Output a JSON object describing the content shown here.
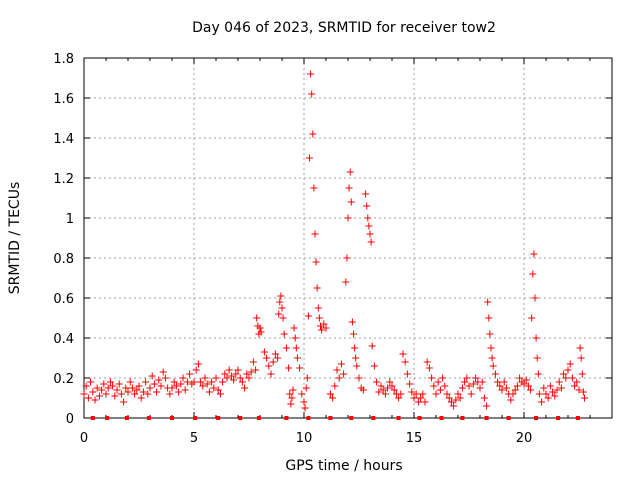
{
  "chart_data": {
    "type": "scatter",
    "title": "Day 046 of 2023, SRMTID for receiver tow2",
    "xlabel": "GPS time / hours",
    "ylabel": "SRMTID / TECUs",
    "xlim": [
      0,
      24
    ],
    "ylim": [
      0,
      1.8
    ],
    "xticks": [
      0,
      5,
      10,
      15,
      20
    ],
    "yticks": [
      0,
      0.2,
      0.4,
      0.6,
      0.8,
      1,
      1.2,
      1.4,
      1.6,
      1.8
    ],
    "xtick_labels": [
      "0",
      "5",
      "10",
      "15",
      "20"
    ],
    "ytick_labels": [
      "0",
      "0.2",
      "0.4",
      "0.6",
      "0.8",
      "1",
      "1.2",
      "1.4",
      "1.6",
      "1.8"
    ],
    "grid": true,
    "marker": "+",
    "color": "#ff0000",
    "series": [
      {
        "name": "SRMTID",
        "points": [
          [
            0.0,
            0.12
          ],
          [
            0.1,
            0.16
          ],
          [
            0.2,
            0.1
          ],
          [
            0.3,
            0.18
          ],
          [
            0.4,
            0.13
          ],
          [
            0.5,
            0.09
          ],
          [
            0.6,
            0.15
          ],
          [
            0.7,
            0.11
          ],
          [
            0.8,
            0.14
          ],
          [
            0.9,
            0.17
          ],
          [
            1.0,
            0.12
          ],
          [
            1.1,
            0.15
          ],
          [
            1.2,
            0.18
          ],
          [
            1.3,
            0.16
          ],
          [
            1.4,
            0.11
          ],
          [
            1.5,
            0.14
          ],
          [
            1.6,
            0.17
          ],
          [
            1.7,
            0.12
          ],
          [
            1.8,
            0.08
          ],
          [
            1.9,
            0.15
          ],
          [
            2.0,
            0.13
          ],
          [
            2.1,
            0.18
          ],
          [
            2.2,
            0.15
          ],
          [
            2.3,
            0.12
          ],
          [
            2.4,
            0.14
          ],
          [
            2.5,
            0.16
          ],
          [
            2.6,
            0.1
          ],
          [
            2.7,
            0.13
          ],
          [
            2.8,
            0.18
          ],
          [
            2.9,
            0.12
          ],
          [
            3.0,
            0.15
          ],
          [
            3.1,
            0.21
          ],
          [
            3.2,
            0.17
          ],
          [
            3.3,
            0.13
          ],
          [
            3.4,
            0.19
          ],
          [
            3.5,
            0.16
          ],
          [
            3.6,
            0.23
          ],
          [
            3.7,
            0.2
          ],
          [
            3.8,
            0.15
          ],
          [
            3.9,
            0.12
          ],
          [
            4.0,
            0.15
          ],
          [
            4.1,
            0.18
          ],
          [
            4.2,
            0.16
          ],
          [
            4.3,
            0.13
          ],
          [
            4.4,
            0.17
          ],
          [
            4.5,
            0.2
          ],
          [
            4.6,
            0.14
          ],
          [
            4.7,
            0.18
          ],
          [
            4.8,
            0.22
          ],
          [
            4.9,
            0.17
          ],
          [
            5.0,
            0.18
          ],
          [
            5.1,
            0.24
          ],
          [
            5.2,
            0.27
          ],
          [
            5.3,
            0.18
          ],
          [
            5.4,
            0.16
          ],
          [
            5.5,
            0.2
          ],
          [
            5.6,
            0.17
          ],
          [
            5.7,
            0.13
          ],
          [
            5.8,
            0.18
          ],
          [
            5.9,
            0.15
          ],
          [
            6.0,
            0.2
          ],
          [
            6.1,
            0.14
          ],
          [
            6.2,
            0.12
          ],
          [
            6.3,
            0.18
          ],
          [
            6.4,
            0.22
          ],
          [
            6.5,
            0.2
          ],
          [
            6.6,
            0.24
          ],
          [
            6.7,
            0.21
          ],
          [
            6.8,
            0.19
          ],
          [
            6.9,
            0.22
          ],
          [
            7.0,
            0.24
          ],
          [
            7.1,
            0.2
          ],
          [
            7.2,
            0.18
          ],
          [
            7.3,
            0.15
          ],
          [
            7.4,
            0.22
          ],
          [
            7.5,
            0.2
          ],
          [
            7.6,
            0.23
          ],
          [
            7.7,
            0.28
          ],
          [
            7.8,
            0.24
          ],
          [
            7.85,
            0.5
          ],
          [
            7.9,
            0.46
          ],
          [
            7.95,
            0.42
          ],
          [
            8.0,
            0.45
          ],
          [
            8.05,
            0.43
          ],
          [
            8.2,
            0.33
          ],
          [
            8.3,
            0.3
          ],
          [
            8.4,
            0.26
          ],
          [
            8.5,
            0.22
          ],
          [
            8.6,
            0.28
          ],
          [
            8.7,
            0.32
          ],
          [
            8.8,
            0.3
          ],
          [
            8.85,
            0.52
          ],
          [
            8.9,
            0.58
          ],
          [
            8.95,
            0.61
          ],
          [
            9.0,
            0.55
          ],
          [
            9.05,
            0.5
          ],
          [
            9.1,
            0.42
          ],
          [
            9.2,
            0.35
          ],
          [
            9.3,
            0.25
          ],
          [
            9.35,
            0.12
          ],
          [
            9.4,
            0.07
          ],
          [
            9.45,
            0.1
          ],
          [
            9.5,
            0.14
          ],
          [
            9.55,
            0.45
          ],
          [
            9.6,
            0.4
          ],
          [
            9.65,
            0.35
          ],
          [
            9.7,
            0.3
          ],
          [
            9.8,
            0.25
          ],
          [
            9.9,
            0.12
          ],
          [
            10.0,
            0.08
          ],
          [
            10.05,
            0.05
          ],
          [
            10.1,
            0.15
          ],
          [
            10.15,
            0.2
          ],
          [
            10.2,
            0.51
          ],
          [
            10.25,
            1.3
          ],
          [
            10.3,
            1.72
          ],
          [
            10.35,
            1.62
          ],
          [
            10.4,
            1.42
          ],
          [
            10.45,
            1.15
          ],
          [
            10.5,
            0.92
          ],
          [
            10.55,
            0.78
          ],
          [
            10.6,
            0.65
          ],
          [
            10.65,
            0.55
          ],
          [
            10.7,
            0.5
          ],
          [
            10.75,
            0.46
          ],
          [
            10.8,
            0.44
          ],
          [
            10.9,
            0.47
          ],
          [
            11.0,
            0.45
          ],
          [
            11.2,
            0.12
          ],
          [
            11.3,
            0.1
          ],
          [
            11.4,
            0.16
          ],
          [
            11.5,
            0.24
          ],
          [
            11.6,
            0.2
          ],
          [
            11.7,
            0.27
          ],
          [
            11.8,
            0.22
          ],
          [
            11.9,
            0.68
          ],
          [
            11.95,
            0.8
          ],
          [
            12.0,
            1.0
          ],
          [
            12.05,
            1.15
          ],
          [
            12.1,
            1.23
          ],
          [
            12.15,
            1.08
          ],
          [
            12.2,
            0.48
          ],
          [
            12.25,
            0.42
          ],
          [
            12.3,
            0.35
          ],
          [
            12.35,
            0.3
          ],
          [
            12.4,
            0.26
          ],
          [
            12.5,
            0.2
          ],
          [
            12.6,
            0.15
          ],
          [
            12.7,
            0.14
          ],
          [
            12.8,
            1.12
          ],
          [
            12.85,
            1.06
          ],
          [
            12.9,
            1.0
          ],
          [
            12.95,
            0.96
          ],
          [
            13.0,
            0.92
          ],
          [
            13.05,
            0.88
          ],
          [
            13.1,
            0.36
          ],
          [
            13.2,
            0.26
          ],
          [
            13.3,
            0.18
          ],
          [
            13.4,
            0.13
          ],
          [
            13.5,
            0.16
          ],
          [
            13.6,
            0.14
          ],
          [
            13.7,
            0.12
          ],
          [
            13.8,
            0.15
          ],
          [
            13.9,
            0.18
          ],
          [
            14.0,
            0.16
          ],
          [
            14.1,
            0.14
          ],
          [
            14.2,
            0.12
          ],
          [
            14.3,
            0.1
          ],
          [
            14.4,
            0.12
          ],
          [
            14.5,
            0.32
          ],
          [
            14.6,
            0.28
          ],
          [
            14.7,
            0.22
          ],
          [
            14.8,
            0.17
          ],
          [
            14.9,
            0.13
          ],
          [
            15.0,
            0.1
          ],
          [
            15.1,
            0.12
          ],
          [
            15.2,
            0.08
          ],
          [
            15.3,
            0.1
          ],
          [
            15.4,
            0.12
          ],
          [
            15.5,
            0.08
          ],
          [
            15.6,
            0.28
          ],
          [
            15.7,
            0.25
          ],
          [
            15.8,
            0.2
          ],
          [
            15.9,
            0.16
          ],
          [
            16.0,
            0.12
          ],
          [
            16.1,
            0.18
          ],
          [
            16.2,
            0.14
          ],
          [
            16.3,
            0.2
          ],
          [
            16.4,
            0.16
          ],
          [
            16.5,
            0.12
          ],
          [
            16.6,
            0.1
          ],
          [
            16.7,
            0.08
          ],
          [
            16.8,
            0.06
          ],
          [
            16.9,
            0.09
          ],
          [
            17.0,
            0.12
          ],
          [
            17.1,
            0.1
          ],
          [
            17.2,
            0.15
          ],
          [
            17.3,
            0.18
          ],
          [
            17.4,
            0.2
          ],
          [
            17.5,
            0.16
          ],
          [
            17.6,
            0.12
          ],
          [
            17.7,
            0.17
          ],
          [
            17.8,
            0.2
          ],
          [
            17.9,
            0.18
          ],
          [
            18.0,
            0.15
          ],
          [
            18.1,
            0.18
          ],
          [
            18.2,
            0.1
          ],
          [
            18.3,
            0.06
          ],
          [
            18.35,
            0.58
          ],
          [
            18.4,
            0.5
          ],
          [
            18.45,
            0.42
          ],
          [
            18.5,
            0.35
          ],
          [
            18.55,
            0.3
          ],
          [
            18.6,
            0.26
          ],
          [
            18.7,
            0.22
          ],
          [
            18.8,
            0.18
          ],
          [
            18.9,
            0.16
          ],
          [
            19.0,
            0.14
          ],
          [
            19.1,
            0.18
          ],
          [
            19.2,
            0.15
          ],
          [
            19.3,
            0.12
          ],
          [
            19.4,
            0.09
          ],
          [
            19.5,
            0.12
          ],
          [
            19.6,
            0.14
          ],
          [
            19.7,
            0.16
          ],
          [
            19.8,
            0.2
          ],
          [
            19.9,
            0.18
          ],
          [
            20.0,
            0.17
          ],
          [
            20.1,
            0.19
          ],
          [
            20.2,
            0.16
          ],
          [
            20.3,
            0.14
          ],
          [
            20.35,
            0.5
          ],
          [
            20.4,
            0.72
          ],
          [
            20.45,
            0.82
          ],
          [
            20.5,
            0.6
          ],
          [
            20.55,
            0.4
          ],
          [
            20.6,
            0.3
          ],
          [
            20.65,
            0.22
          ],
          [
            20.7,
            0.12
          ],
          [
            20.8,
            0.08
          ],
          [
            20.9,
            0.15
          ],
          [
            21.0,
            0.12
          ],
          [
            21.1,
            0.1
          ],
          [
            21.2,
            0.16
          ],
          [
            21.3,
            0.13
          ],
          [
            21.4,
            0.11
          ],
          [
            21.5,
            0.14
          ],
          [
            21.6,
            0.18
          ],
          [
            21.7,
            0.15
          ],
          [
            21.8,
            0.22
          ],
          [
            21.9,
            0.2
          ],
          [
            22.0,
            0.24
          ],
          [
            22.1,
            0.27
          ],
          [
            22.2,
            0.2
          ],
          [
            22.3,
            0.16
          ],
          [
            22.4,
            0.18
          ],
          [
            22.5,
            0.14
          ],
          [
            22.55,
            0.35
          ],
          [
            22.6,
            0.3
          ],
          [
            22.65,
            0.22
          ],
          [
            22.7,
            0.13
          ],
          [
            22.75,
            0.1
          ]
        ]
      },
      {
        "name": "baseline markers",
        "y": 0,
        "x": [
          0.4,
          1.05,
          1.95,
          2.95,
          4.0,
          5.05,
          6.1,
          7.1,
          7.95,
          9.2,
          10.2,
          11.2,
          12.15,
          13.15,
          14.3,
          15.25,
          16.25,
          17.2,
          18.3,
          19.3,
          20.55,
          21.55,
          22.45
        ]
      }
    ]
  }
}
